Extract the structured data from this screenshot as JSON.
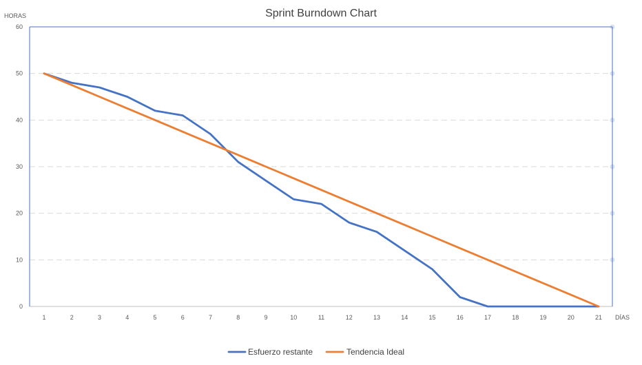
{
  "chart_data": {
    "type": "line",
    "title": "Sprint Burndown Chart",
    "ylabel": "HORAS",
    "xlabel": "DÍAS",
    "categories": [
      1,
      2,
      3,
      4,
      5,
      6,
      7,
      8,
      9,
      10,
      11,
      12,
      13,
      14,
      15,
      16,
      17,
      18,
      19,
      20,
      21
    ],
    "ylim": [
      0,
      60
    ],
    "yticks": [
      0,
      10,
      20,
      30,
      40,
      50,
      60
    ],
    "grid": true,
    "legend_position": "bottom",
    "series": [
      {
        "name": "Esfuerzo restante",
        "color": "#4472C4",
        "values": [
          50,
          48,
          47,
          45,
          42,
          41,
          37,
          31,
          27,
          23,
          22,
          18,
          16,
          12,
          8,
          2,
          0,
          0,
          0,
          0,
          0
        ]
      },
      {
        "name": "Tendencia Ideal",
        "color": "#ED7D31",
        "values": [
          50,
          47.5,
          45,
          42.5,
          40,
          37.5,
          35,
          32.5,
          30,
          27.5,
          25,
          22.5,
          20,
          17.5,
          15,
          12.5,
          10,
          7.5,
          5,
          2.5,
          0
        ]
      }
    ]
  },
  "colors": {
    "axis": "#4472C4",
    "grid": "#D9D9D9",
    "x_axis_line": "#BFBFBF"
  }
}
